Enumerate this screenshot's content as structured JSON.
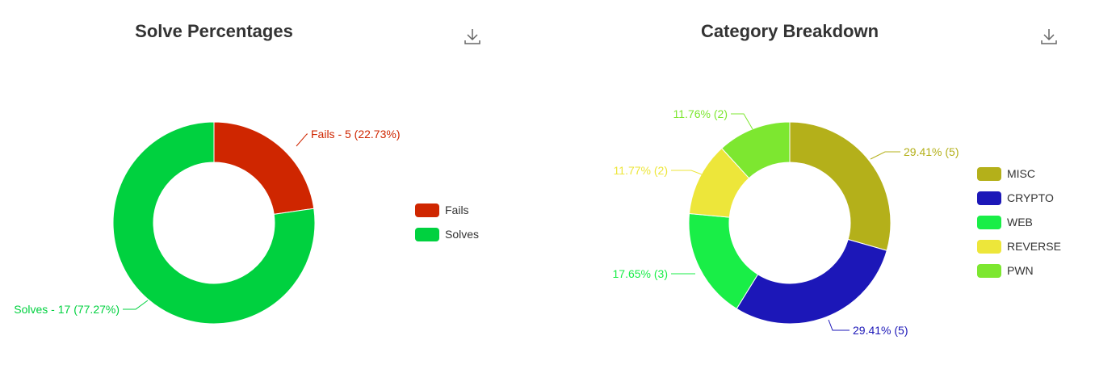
{
  "chart_data": [
    {
      "type": "pie",
      "title": "Solve Percentages",
      "categories": [
        "Fails",
        "Solves"
      ],
      "values": [
        5,
        17
      ],
      "percentages": [
        "22.73%",
        "77.27%"
      ],
      "colors": [
        "#cf2600",
        "#00d13f"
      ],
      "slice_labels": [
        "Fails - 5 (22.73%)",
        "Solves - 17 (77.27%)"
      ],
      "legend": [
        "Fails",
        "Solves"
      ],
      "legend_position": "right"
    },
    {
      "type": "pie",
      "title": "Category Breakdown",
      "categories": [
        "MISC",
        "CRYPTO",
        "WEB",
        "REVERSE",
        "PWN"
      ],
      "values": [
        5,
        5,
        3,
        2,
        2
      ],
      "percentages": [
        "29.41%",
        "29.41%",
        "17.65%",
        "11.77%",
        "11.76%"
      ],
      "colors": [
        "#b4b01a",
        "#1c17b8",
        "#19ee47",
        "#ede63a",
        "#7de730"
      ],
      "slice_labels": [
        "29.41% (5)",
        "29.41% (5)",
        "17.65% (3)",
        "11.77% (2)",
        "11.76% (2)"
      ],
      "legend": [
        "MISC",
        "CRYPTO",
        "WEB",
        "REVERSE",
        "PWN"
      ],
      "legend_position": "right"
    }
  ],
  "icons": {
    "download": "download-icon"
  }
}
